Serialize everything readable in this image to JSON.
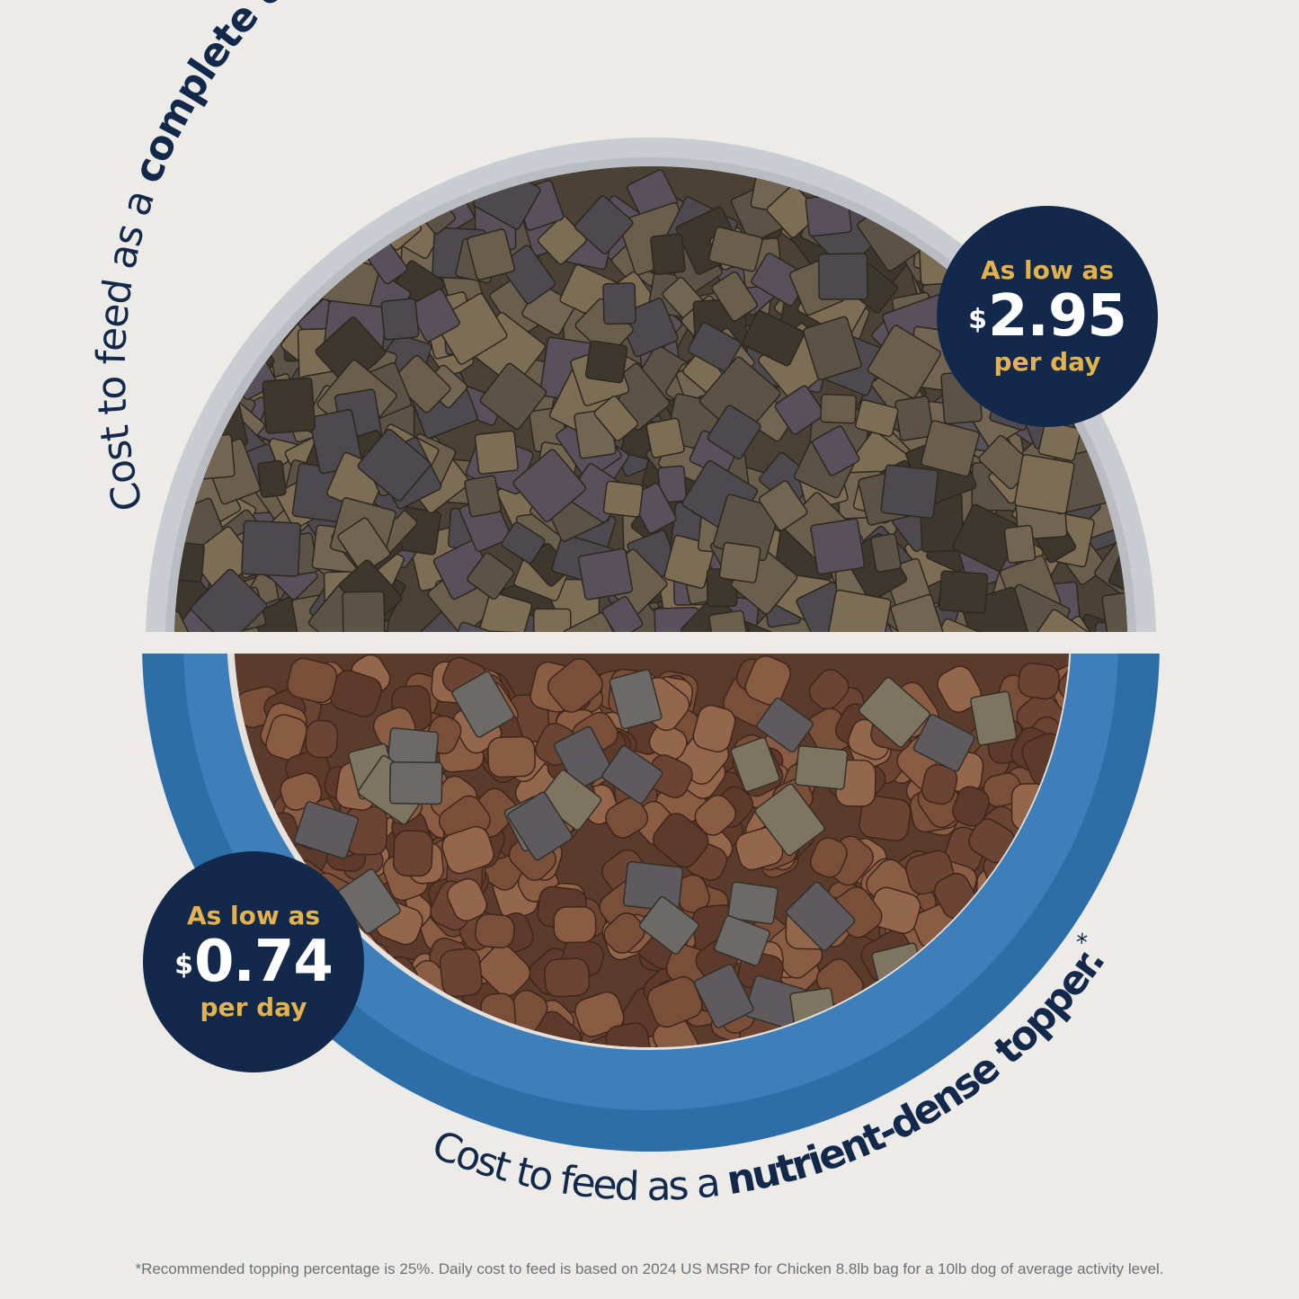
{
  "headline_top": {
    "regular": "Cost to feed as a ",
    "bold": "complete & balanced meal."
  },
  "headline_bottom": {
    "regular": "Cost to feed as a ",
    "bold": "nutrient-dense topper.",
    "asterisk": "*"
  },
  "badge_meal": {
    "lead": "As low as",
    "currency": "$",
    "price": "2.95",
    "unit": "per day"
  },
  "badge_topper": {
    "lead": "As low as",
    "currency": "$",
    "price": "0.74",
    "unit": "per day"
  },
  "footnote": "*Recommended topping percentage is 25%. Daily cost to feed is based on 2024 US MSRP for Chicken 8.8lb bag for a 10lb dog of average activity level.",
  "colors": {
    "navy": "#13294b",
    "gold": "#e3b24e",
    "background": "#ecebe8",
    "bowl_blue": "#2d6ea8",
    "bowl_gray": "#c9ccd0"
  }
}
